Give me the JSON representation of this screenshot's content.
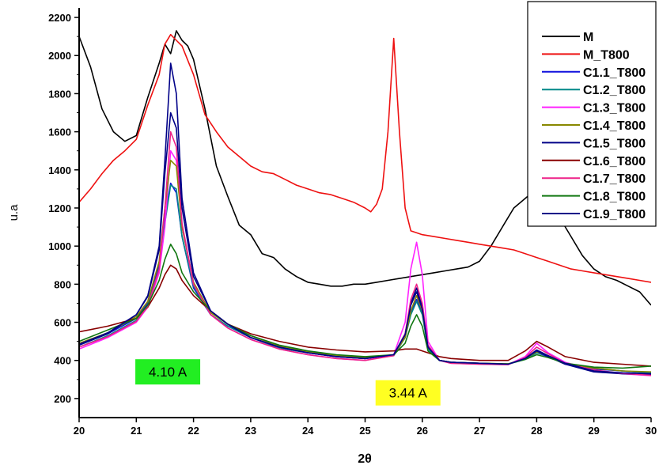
{
  "chart_data": {
    "type": "line",
    "xlabel": "2θ",
    "ylabel": "u.a",
    "xlim": [
      20,
      30
    ],
    "ylim": [
      100,
      2250
    ],
    "xticks": [
      "20",
      "21",
      "22",
      "23",
      "24",
      "25",
      "26",
      "27",
      "28",
      "29",
      "30"
    ],
    "yticks": [
      "200",
      "400",
      "600",
      "800",
      "1000",
      "1200",
      "1400",
      "1600",
      "1800",
      "2000",
      "2200"
    ],
    "grid": false,
    "legend_position": "top-right",
    "annotations": [
      {
        "text": "4.10 A",
        "x": 21.55,
        "y": 340,
        "bg": "#22ee22"
      },
      {
        "text": "3.44 A",
        "x": 25.75,
        "y": 230,
        "bg": "#ffff22"
      }
    ],
    "series": [
      {
        "name": "M",
        "color": "#000000",
        "x": [
          20,
          20.2,
          20.4,
          20.6,
          20.8,
          21,
          21.2,
          21.4,
          21.5,
          21.6,
          21.7,
          21.8,
          21.9,
          22,
          22.2,
          22.4,
          22.6,
          22.8,
          23,
          23.2,
          23.4,
          23.6,
          23.8,
          24,
          24.2,
          24.4,
          24.6,
          24.8,
          25,
          25.2,
          25.4,
          25.6,
          25.8,
          26,
          26.2,
          26.4,
          26.6,
          26.8,
          27,
          27.2,
          27.4,
          27.6,
          27.8,
          28,
          28.2,
          28.4,
          28.6,
          28.8,
          29,
          29.2,
          29.4,
          29.6,
          29.8,
          30
        ],
        "y": [
          2100,
          1940,
          1720,
          1600,
          1550,
          1580,
          1780,
          1960,
          2060,
          2010,
          2130,
          2080,
          2050,
          1980,
          1720,
          1420,
          1260,
          1110,
          1060,
          960,
          940,
          880,
          840,
          810,
          800,
          790,
          790,
          800,
          800,
          810,
          820,
          830,
          840,
          850,
          860,
          870,
          880,
          890,
          920,
          1000,
          1100,
          1200,
          1250,
          1300,
          1250,
          1150,
          1050,
          950,
          880,
          840,
          820,
          790,
          760,
          690
        ]
      },
      {
        "name": "M_T800",
        "color": "#ee1111",
        "x": [
          20,
          20.2,
          20.4,
          20.6,
          20.8,
          21,
          21.2,
          21.4,
          21.5,
          21.6,
          21.7,
          21.8,
          22,
          22.2,
          22.4,
          22.6,
          22.8,
          23,
          23.2,
          23.4,
          23.6,
          23.8,
          24,
          24.2,
          24.4,
          24.6,
          24.8,
          25,
          25.1,
          25.2,
          25.3,
          25.4,
          25.5,
          25.6,
          25.7,
          25.8,
          26,
          26.2,
          26.4,
          26.6,
          26.8,
          27,
          27.2,
          27.4,
          27.6,
          27.8,
          28,
          28.2,
          28.4,
          28.6,
          28.8,
          29,
          29.2,
          29.4,
          29.6,
          29.8,
          30
        ],
        "y": [
          1230,
          1300,
          1380,
          1450,
          1500,
          1560,
          1740,
          1900,
          2060,
          2110,
          2080,
          2050,
          1900,
          1690,
          1600,
          1520,
          1470,
          1420,
          1390,
          1380,
          1350,
          1320,
          1300,
          1280,
          1270,
          1250,
          1230,
          1200,
          1180,
          1220,
          1300,
          1600,
          2090,
          1600,
          1200,
          1080,
          1060,
          1050,
          1040,
          1030,
          1020,
          1010,
          1000,
          990,
          980,
          960,
          940,
          920,
          900,
          880,
          870,
          860,
          850,
          840,
          830,
          820,
          810
        ]
      },
      {
        "name": "C1.1_T800",
        "color": "#1111dd",
        "x": [
          20,
          20.5,
          21,
          21.2,
          21.4,
          21.5,
          21.6,
          21.7,
          21.8,
          22,
          22.3,
          22.6,
          23,
          23.5,
          24,
          24.5,
          25,
          25.5,
          25.7,
          25.8,
          25.9,
          26,
          26.1,
          26.3,
          26.5,
          27,
          27.5,
          27.8,
          28,
          28.2,
          28.5,
          29,
          29.5,
          30
        ],
        "y": [
          480,
          540,
          620,
          700,
          900,
          1150,
          1330,
          1280,
          1050,
          780,
          640,
          580,
          520,
          470,
          440,
          420,
          410,
          430,
          520,
          650,
          720,
          650,
          470,
          400,
          390,
          385,
          380,
          410,
          440,
          420,
          380,
          355,
          345,
          335
        ]
      },
      {
        "name": "C1.2_T800",
        "color": "#008888",
        "x": [
          20,
          20.5,
          21,
          21.2,
          21.4,
          21.5,
          21.6,
          21.7,
          21.8,
          22,
          22.3,
          22.6,
          23,
          23.5,
          24,
          24.5,
          25,
          25.5,
          25.7,
          25.8,
          25.9,
          26,
          26.1,
          26.3,
          26.5,
          27,
          27.5,
          27.8,
          28,
          28.2,
          28.5,
          29,
          29.5,
          30
        ],
        "y": [
          470,
          530,
          610,
          690,
          880,
          1120,
          1320,
          1300,
          1050,
          790,
          640,
          580,
          520,
          465,
          440,
          420,
          410,
          425,
          520,
          640,
          710,
          640,
          460,
          400,
          388,
          382,
          380,
          405,
          440,
          425,
          385,
          360,
          345,
          335
        ]
      },
      {
        "name": "C1.3_T800",
        "color": "#ff22ff",
        "x": [
          20,
          20.5,
          21,
          21.2,
          21.4,
          21.5,
          21.6,
          21.7,
          21.8,
          22,
          22.3,
          22.6,
          23,
          23.5,
          24,
          24.5,
          25,
          25.5,
          25.7,
          25.8,
          25.9,
          26,
          26.1,
          26.3,
          26.5,
          27,
          27.5,
          27.8,
          28,
          28.2,
          28.5,
          29,
          29.5,
          30
        ],
        "y": [
          460,
          520,
          600,
          680,
          860,
          1100,
          1500,
          1450,
          1100,
          800,
          640,
          570,
          510,
          460,
          430,
          410,
          400,
          430,
          600,
          880,
          1020,
          850,
          500,
          400,
          385,
          380,
          378,
          420,
          490,
          440,
          390,
          350,
          330,
          320
        ]
      },
      {
        "name": "C1.4_T800",
        "color": "#888800",
        "x": [
          20,
          20.5,
          21,
          21.2,
          21.4,
          21.5,
          21.6,
          21.7,
          21.8,
          22,
          22.3,
          22.6,
          23,
          23.5,
          24,
          24.5,
          25,
          25.5,
          25.7,
          25.8,
          25.9,
          26,
          26.1,
          26.3,
          26.5,
          27,
          27.5,
          27.8,
          28,
          28.2,
          28.5,
          29,
          29.5,
          30
        ],
        "y": [
          490,
          545,
          630,
          710,
          920,
          1200,
          1450,
          1420,
          1100,
          810,
          650,
          590,
          530,
          475,
          445,
          425,
          415,
          430,
          520,
          660,
          740,
          660,
          470,
          400,
          390,
          385,
          382,
          410,
          445,
          425,
          385,
          360,
          345,
          340
        ]
      },
      {
        "name": "C1.5_T800",
        "color": "#000088",
        "x": [
          20,
          20.5,
          21,
          21.2,
          21.4,
          21.5,
          21.6,
          21.7,
          21.8,
          22,
          22.3,
          22.6,
          23,
          23.5,
          24,
          24.5,
          25,
          25.5,
          25.7,
          25.8,
          25.9,
          26,
          26.1,
          26.3,
          26.5,
          27,
          27.5,
          27.8,
          28,
          28.2,
          28.5,
          29,
          29.5,
          30
        ],
        "y": [
          480,
          540,
          640,
          740,
          1000,
          1450,
          1960,
          1800,
          1250,
          860,
          660,
          590,
          520,
          470,
          440,
          420,
          410,
          430,
          540,
          700,
          780,
          680,
          470,
          400,
          390,
          385,
          380,
          410,
          450,
          420,
          380,
          340,
          330,
          325
        ]
      },
      {
        "name": "C1.6_T800",
        "color": "#880000",
        "x": [
          20,
          20.5,
          21,
          21.2,
          21.4,
          21.5,
          21.6,
          21.7,
          21.8,
          22,
          22.3,
          22.6,
          23,
          23.5,
          24,
          24.5,
          25,
          25.5,
          25.7,
          25.8,
          25.9,
          26,
          26.1,
          26.3,
          26.5,
          27,
          27.5,
          27.8,
          28,
          28.2,
          28.5,
          29,
          29.5,
          30
        ],
        "y": [
          550,
          580,
          620,
          680,
          780,
          850,
          900,
          880,
          820,
          740,
          660,
          590,
          540,
          500,
          470,
          455,
          445,
          450,
          460,
          460,
          460,
          450,
          440,
          420,
          410,
          400,
          400,
          450,
          500,
          470,
          420,
          390,
          380,
          370
        ]
      },
      {
        "name": "C1.7_T800",
        "color": "#ee2288",
        "x": [
          20,
          20.5,
          21,
          21.2,
          21.4,
          21.5,
          21.6,
          21.7,
          21.8,
          22,
          22.3,
          22.6,
          23,
          23.5,
          24,
          24.5,
          25,
          25.5,
          25.7,
          25.8,
          25.9,
          26,
          26.1,
          26.3,
          26.5,
          27,
          27.5,
          27.8,
          28,
          28.2,
          28.5,
          29,
          29.5,
          30
        ],
        "y": [
          470,
          525,
          605,
          685,
          880,
          1200,
          1600,
          1520,
          1120,
          800,
          640,
          570,
          510,
          460,
          430,
          410,
          400,
          425,
          540,
          720,
          800,
          700,
          480,
          400,
          385,
          380,
          378,
          415,
          470,
          435,
          385,
          350,
          332,
          322
        ]
      },
      {
        "name": "C1.8_T800",
        "color": "#117711",
        "x": [
          20,
          20.5,
          21,
          21.2,
          21.4,
          21.5,
          21.6,
          21.7,
          21.8,
          22,
          22.3,
          22.6,
          23,
          23.5,
          24,
          24.5,
          25,
          25.5,
          25.7,
          25.8,
          25.9,
          26,
          26.1,
          26.3,
          26.5,
          27,
          27.5,
          27.8,
          28,
          28.2,
          28.5,
          29,
          29.5,
          30
        ],
        "y": [
          500,
          560,
          620,
          690,
          820,
          930,
          1010,
          960,
          860,
          760,
          660,
          590,
          530,
          480,
          450,
          430,
          420,
          430,
          490,
          580,
          640,
          580,
          450,
          400,
          390,
          385,
          382,
          405,
          430,
          415,
          385,
          365,
          360,
          370
        ]
      },
      {
        "name": "C1.9_T800",
        "color": "#000088",
        "x": [
          20,
          20.5,
          21,
          21.2,
          21.4,
          21.5,
          21.6,
          21.7,
          21.8,
          22,
          22.3,
          22.6,
          23,
          23.5,
          24,
          24.5,
          25,
          25.5,
          25.7,
          25.8,
          25.9,
          26,
          26.1,
          26.3,
          26.5,
          27,
          27.5,
          27.8,
          28,
          28.2,
          28.5,
          29,
          29.5,
          30
        ],
        "y": [
          485,
          545,
          640,
          735,
          980,
          1380,
          1700,
          1620,
          1200,
          840,
          660,
          590,
          520,
          470,
          440,
          420,
          410,
          430,
          535,
          690,
          760,
          670,
          470,
          400,
          390,
          385,
          380,
          410,
          455,
          425,
          385,
          345,
          335,
          330
        ]
      }
    ]
  }
}
